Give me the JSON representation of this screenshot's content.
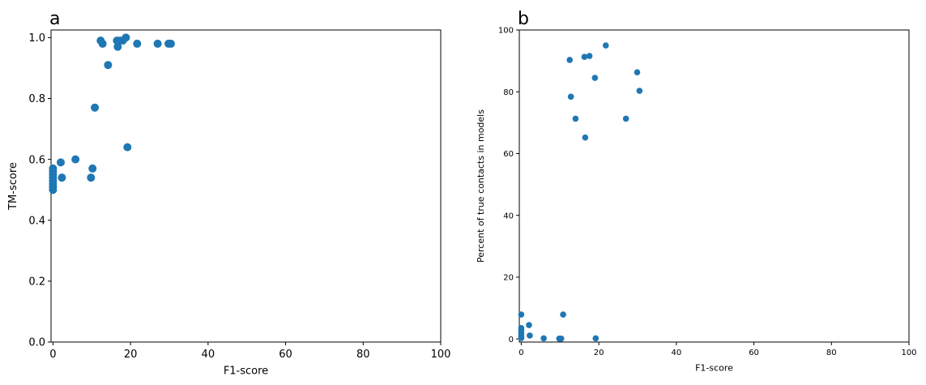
{
  "chart_data": [
    {
      "type": "scatter",
      "panel_label": "a",
      "xlabel": "F1-score",
      "ylabel": "TM-score",
      "xlim": [
        -0.5,
        100
      ],
      "ylim": [
        0,
        1.025
      ],
      "xticks": [
        0,
        20,
        40,
        60,
        80,
        100
      ],
      "yticks": [
        0.0,
        0.2,
        0.4,
        0.6,
        0.8,
        1.0
      ],
      "ytick_labels": [
        "0.0",
        "0.2",
        "0.4",
        "0.6",
        "0.8",
        "1.0"
      ],
      "grid": false,
      "color": "#1f77b4",
      "points": [
        [
          0.0,
          0.57
        ],
        [
          0.0,
          0.56
        ],
        [
          0.0,
          0.55
        ],
        [
          0.0,
          0.54
        ],
        [
          0.0,
          0.53
        ],
        [
          0.0,
          0.52
        ],
        [
          0.0,
          0.51
        ],
        [
          0.0,
          0.5
        ],
        [
          2.0,
          0.59
        ],
        [
          2.3,
          0.54
        ],
        [
          5.8,
          0.6
        ],
        [
          9.8,
          0.54
        ],
        [
          10.2,
          0.57
        ],
        [
          10.8,
          0.77
        ],
        [
          12.3,
          0.99
        ],
        [
          12.8,
          0.98
        ],
        [
          14.2,
          0.91
        ],
        [
          16.5,
          0.99
        ],
        [
          16.7,
          0.97
        ],
        [
          17.3,
          0.99
        ],
        [
          18.0,
          0.99
        ],
        [
          18.8,
          1.0
        ],
        [
          19.2,
          0.64
        ],
        [
          21.7,
          0.98
        ],
        [
          27.0,
          0.98
        ],
        [
          29.8,
          0.98
        ],
        [
          30.4,
          0.98
        ]
      ]
    },
    {
      "type": "scatter",
      "panel_label": "b",
      "xlabel": "F1-score",
      "ylabel": "Percent of true contacts in models",
      "xlim": [
        -0.5,
        100
      ],
      "ylim": [
        -1,
        100
      ],
      "xticks": [
        0,
        20,
        40,
        60,
        80,
        100
      ],
      "yticks": [
        0,
        20,
        40,
        60,
        80,
        100
      ],
      "ytick_labels": [
        "0",
        "20",
        "40",
        "60",
        "80",
        "100"
      ],
      "grid": false,
      "color": "#1f77b4",
      "points": [
        [
          0.0,
          7.9
        ],
        [
          0.0,
          3.5
        ],
        [
          0.0,
          2.8
        ],
        [
          0.0,
          1.8
        ],
        [
          0.0,
          0.9
        ],
        [
          0.0,
          0.3
        ],
        [
          2.0,
          4.5
        ],
        [
          2.2,
          1.1
        ],
        [
          5.8,
          0.2
        ],
        [
          9.8,
          0.1
        ],
        [
          10.3,
          0.1
        ],
        [
          10.8,
          7.9
        ],
        [
          12.5,
          90.3
        ],
        [
          12.8,
          78.4
        ],
        [
          14.0,
          71.3
        ],
        [
          16.3,
          91.3
        ],
        [
          16.5,
          65.2
        ],
        [
          17.6,
          91.6
        ],
        [
          19.0,
          84.5
        ],
        [
          19.2,
          0.2
        ],
        [
          21.8,
          95.0
        ],
        [
          27.0,
          71.3
        ],
        [
          29.9,
          86.3
        ],
        [
          30.5,
          80.3
        ]
      ]
    }
  ]
}
